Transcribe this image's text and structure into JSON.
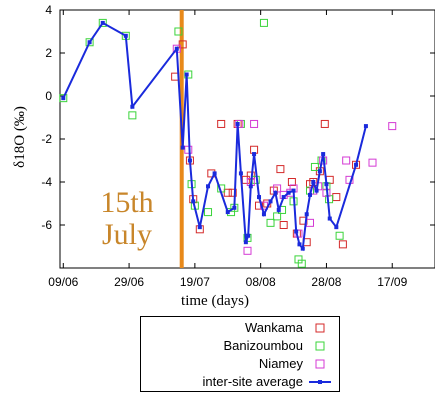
{
  "chart_data": {
    "type": "scatter",
    "title": "",
    "xlabel": "time (days)",
    "ylabel": "δ18O (‰)",
    "ylim": [
      -8,
      4
    ],
    "y_ticks": [
      -6,
      -4,
      -2,
      0,
      2,
      4
    ],
    "x_ticks": [
      "09/06",
      "29/06",
      "19/07",
      "08/08",
      "28/08",
      "17/09"
    ],
    "x_tick_days": [
      0,
      20,
      40,
      60,
      80,
      100
    ],
    "xlim_days": [
      -1,
      113
    ],
    "grid": false,
    "annotation": {
      "lines": [
        "15th",
        "July"
      ],
      "vertical_line_day": 36,
      "color": "#e8891a"
    },
    "series": [
      {
        "name": "Wankama",
        "marker": "square",
        "color": "#d42a2a",
        "points": [
          [
            34,
            0.9
          ],
          [
            36.3,
            2.4
          ],
          [
            38.5,
            -3.0
          ],
          [
            39.5,
            -4.8
          ],
          [
            41.5,
            -6.2
          ],
          [
            45,
            -3.6
          ],
          [
            48,
            -1.3
          ],
          [
            50,
            -4.5
          ],
          [
            51.5,
            -4.5
          ],
          [
            53,
            -1.3
          ],
          [
            55.5,
            -3.9
          ],
          [
            57,
            -3.7
          ],
          [
            58,
            -2.5
          ],
          [
            59.5,
            -5.1
          ],
          [
            62,
            -5.0
          ],
          [
            64,
            -4.4
          ],
          [
            66,
            -3.4
          ],
          [
            67,
            -6.0
          ],
          [
            69.5,
            -4.0
          ],
          [
            71,
            -6.4
          ],
          [
            73,
            -5.8
          ],
          [
            74,
            -6.8
          ],
          [
            75,
            -4.1
          ],
          [
            76,
            -4.0
          ],
          [
            78,
            -3.5
          ],
          [
            79.5,
            -1.3
          ],
          [
            81,
            -3.9
          ],
          [
            83,
            -4.7
          ],
          [
            85,
            -6.9
          ],
          [
            89,
            -3.2
          ]
        ]
      },
      {
        "name": "Banizoumbou",
        "marker": "square",
        "color": "#3ad43a",
        "points": [
          [
            0,
            -0.1
          ],
          [
            8,
            2.5
          ],
          [
            12,
            3.4
          ],
          [
            19,
            2.8
          ],
          [
            21,
            -0.9
          ],
          [
            35,
            3.0
          ],
          [
            38,
            1.0
          ],
          [
            39,
            -4.1
          ],
          [
            40,
            -5.1
          ],
          [
            44,
            -5.4
          ],
          [
            48,
            -4.3
          ],
          [
            51,
            -5.4
          ],
          [
            52,
            -5.2
          ],
          [
            54,
            -1.3
          ],
          [
            56,
            -6.6
          ],
          [
            58.5,
            -3.9
          ],
          [
            61,
            3.4
          ],
          [
            63,
            -5.9
          ],
          [
            65,
            -5.6
          ],
          [
            66.5,
            -5.3
          ],
          [
            70,
            -4.9
          ],
          [
            71.5,
            -7.6
          ],
          [
            72.5,
            -7.8
          ],
          [
            75,
            -4.4
          ],
          [
            76.5,
            -3.3
          ],
          [
            78.5,
            -3.0
          ],
          [
            80,
            -4.2
          ],
          [
            80.8,
            -4.8
          ],
          [
            84,
            -6.5
          ]
        ]
      },
      {
        "name": "Niamey",
        "marker": "square",
        "color": "#d43ad4",
        "points": [
          [
            34.5,
            2.2
          ],
          [
            38,
            -2.5
          ],
          [
            53.5,
            -1.3
          ],
          [
            56,
            -7.2
          ],
          [
            57,
            -4.0
          ],
          [
            58,
            -1.3
          ],
          [
            61,
            -5.1
          ],
          [
            65,
            -4.3
          ],
          [
            67,
            -4.6
          ],
          [
            69,
            -4.5
          ],
          [
            70,
            -4.3
          ],
          [
            71.5,
            -6.4
          ],
          [
            75,
            -5.9
          ],
          [
            76,
            -4.4
          ],
          [
            77.5,
            -4.2
          ],
          [
            79,
            -3.0
          ],
          [
            80,
            -4.5
          ],
          [
            86,
            -3.0
          ],
          [
            87,
            -3.9
          ],
          [
            94,
            -3.1
          ],
          [
            100,
            -1.4
          ]
        ]
      },
      {
        "name": "inter-site average",
        "marker": "line-square",
        "color": "#1a2adc",
        "points": [
          [
            0,
            -0.1
          ],
          [
            8,
            2.5
          ],
          [
            12,
            3.4
          ],
          [
            19,
            2.8
          ],
          [
            21,
            -0.5
          ],
          [
            34.5,
            2.2
          ],
          [
            36.3,
            -2.4
          ],
          [
            37.5,
            1.0
          ],
          [
            38.5,
            -3.0
          ],
          [
            39.5,
            -4.9
          ],
          [
            41.5,
            -6.1
          ],
          [
            44,
            -4.2
          ],
          [
            46,
            -3.6
          ],
          [
            50,
            -5.4
          ],
          [
            52,
            -5.2
          ],
          [
            53,
            -1.3
          ],
          [
            54,
            -3.6
          ],
          [
            55.5,
            -6.8
          ],
          [
            56.2,
            -6.5
          ],
          [
            57,
            -4.2
          ],
          [
            58,
            -2.7
          ],
          [
            59.5,
            -4.7
          ],
          [
            61,
            -5.5
          ],
          [
            63,
            -4.9
          ],
          [
            64.5,
            -4.5
          ],
          [
            65.5,
            -5.3
          ],
          [
            67,
            -4.7
          ],
          [
            68.5,
            -4.5
          ],
          [
            70,
            -4.4
          ],
          [
            70.8,
            -6.3
          ],
          [
            71.8,
            -6.9
          ],
          [
            72.8,
            -7.1
          ],
          [
            74,
            -5.5
          ],
          [
            75,
            -4.6
          ],
          [
            76,
            -4.0
          ],
          [
            77,
            -4.4
          ],
          [
            78,
            -3.5
          ],
          [
            79,
            -2.7
          ],
          [
            80,
            -4.1
          ],
          [
            81,
            -5.7
          ],
          [
            83,
            -6.1
          ],
          [
            89,
            -3.2
          ],
          [
            92,
            -1.4
          ]
        ]
      }
    ]
  }
}
